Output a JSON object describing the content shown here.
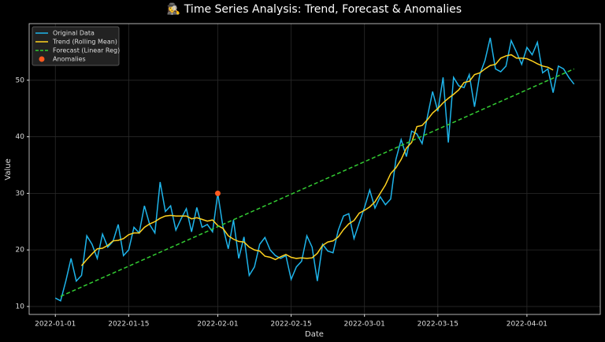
{
  "chart_data": {
    "type": "line",
    "title": "🕵‍♀ Time Series Analysis: Trend, Forecast & Anomalies",
    "x_label": "Date",
    "y_label": "Value",
    "x": [
      "2022-01-01",
      "2022-01-02",
      "2022-01-03",
      "2022-01-04",
      "2022-01-05",
      "2022-01-06",
      "2022-01-07",
      "2022-01-08",
      "2022-01-09",
      "2022-01-10",
      "2022-01-11",
      "2022-01-12",
      "2022-01-13",
      "2022-01-14",
      "2022-01-15",
      "2022-01-16",
      "2022-01-17",
      "2022-01-18",
      "2022-01-19",
      "2022-01-20",
      "2022-01-21",
      "2022-01-22",
      "2022-01-23",
      "2022-01-24",
      "2022-01-25",
      "2022-01-26",
      "2022-01-27",
      "2022-01-28",
      "2022-01-29",
      "2022-01-30",
      "2022-01-31",
      "2022-02-01",
      "2022-02-02",
      "2022-02-03",
      "2022-02-04",
      "2022-02-05",
      "2022-02-06",
      "2022-02-07",
      "2022-02-08",
      "2022-02-09",
      "2022-02-10",
      "2022-02-11",
      "2022-02-12",
      "2022-02-13",
      "2022-02-14",
      "2022-02-15",
      "2022-02-16",
      "2022-02-17",
      "2022-02-18",
      "2022-02-19",
      "2022-02-20",
      "2022-02-21",
      "2022-02-22",
      "2022-02-23",
      "2022-02-24",
      "2022-02-25",
      "2022-02-26",
      "2022-02-27",
      "2022-02-28",
      "2022-03-01",
      "2022-03-02",
      "2022-03-03",
      "2022-03-04",
      "2022-03-05",
      "2022-03-06",
      "2022-03-07",
      "2022-03-08",
      "2022-03-09",
      "2022-03-10",
      "2022-03-11",
      "2022-03-12",
      "2022-03-13",
      "2022-03-14",
      "2022-03-15",
      "2022-03-16",
      "2022-03-17",
      "2022-03-18",
      "2022-03-19",
      "2022-03-20",
      "2022-03-21",
      "2022-03-22",
      "2022-03-23",
      "2022-03-24",
      "2022-03-25",
      "2022-03-26",
      "2022-03-27",
      "2022-03-28",
      "2022-03-29",
      "2022-03-30",
      "2022-03-31",
      "2022-04-01",
      "2022-04-02",
      "2022-04-03",
      "2022-04-04",
      "2022-04-05",
      "2022-04-06",
      "2022-04-07",
      "2022-04-08",
      "2022-04-09",
      "2022-04-10"
    ],
    "series": [
      {
        "name": "Original Data",
        "type": "line",
        "color": "#1eb4ea",
        "values": [
          11.5,
          11,
          14.5,
          18.5,
          14.5,
          15.5,
          22.5,
          21,
          18.5,
          22.8,
          20.5,
          21.5,
          24.5,
          19,
          20,
          24,
          23,
          27.8,
          24.5,
          23,
          32,
          26.8,
          27.8,
          23.5,
          25.5,
          27.3,
          23.2,
          27.5,
          24,
          24.5,
          23.2,
          30,
          24,
          20.2,
          25.3,
          18.5,
          22.3,
          15.5,
          17,
          21,
          22.2,
          20,
          19,
          18.5,
          19,
          14.8,
          17,
          18,
          22.5,
          20.5,
          14.5,
          21,
          19.8,
          19.5,
          23.5,
          26,
          26.4,
          22,
          24.8,
          27.5,
          30.6,
          27.4,
          29.4,
          28,
          29,
          36,
          39.5,
          36.5,
          41,
          40.5,
          38.8,
          43.5,
          48,
          44.5,
          50.5,
          39,
          50.5,
          49,
          48.7,
          51,
          45.3,
          51,
          53.5,
          57.5,
          52,
          51.5,
          52.5,
          57,
          55,
          52.8,
          55.8,
          54.5,
          56.7,
          51.3,
          52,
          47.8,
          52.5,
          52,
          50.5,
          49.3
        ]
      },
      {
        "name": "Trend (Rolling Mean)",
        "type": "line",
        "color": "#ffd21f",
        "values": [
          null,
          null,
          null,
          null,
          null,
          17.2,
          18.3,
          19.3,
          20.2,
          20.3,
          20.8,
          21.6,
          21.7,
          22,
          22.7,
          23,
          23,
          24,
          24.6,
          25,
          25.6,
          26,
          26.1,
          26,
          26,
          26,
          25.5,
          25.7,
          25.4,
          25.1,
          25.3,
          24.3,
          23.8,
          22.5,
          21.9,
          21.5,
          21.4,
          20.5,
          20,
          19.8,
          18.9,
          18.7,
          18.3,
          18.8,
          19.2,
          18.7,
          18.5,
          18.6,
          18.5,
          18.6,
          19.4,
          20.8,
          21.4,
          21.6,
          22.3,
          23.6,
          24.6,
          25.2,
          26.5,
          27,
          27.6,
          28.5,
          30,
          31.5,
          33.5,
          34.5,
          36,
          38,
          39,
          41.8,
          42,
          43,
          44.2,
          45,
          46,
          46.8,
          47.5,
          48.3,
          49.6,
          49.8,
          51,
          51.3,
          52,
          52.6,
          52.8,
          53.9,
          54.3,
          54.5,
          53.9,
          53.9,
          53.8,
          53.4,
          52.9,
          52.5,
          52.3,
          51.8,
          null,
          null,
          null,
          null
        ]
      },
      {
        "name": "Forecast (Linear Reg)",
        "type": "line",
        "dashed": true,
        "color": "#33cc33",
        "x": [
          "2022-01-02",
          "2022-04-10"
        ],
        "values": [
          11.8,
          52
        ]
      },
      {
        "name": "Anomalies",
        "type": "scatter",
        "color": "#ff5a1f",
        "x": [
          "2022-02-01"
        ],
        "values": [
          30
        ]
      }
    ],
    "xlim": [
      "2021-12-27",
      "2022-04-15"
    ],
    "xticks": [
      "2022-01-01",
      "2022-01-15",
      "2022-02-01",
      "2022-02-15",
      "2022-03-01",
      "2022-03-15",
      "2022-04-01"
    ],
    "ylim": [
      8.6,
      60
    ],
    "yticks": [
      10,
      20,
      30,
      40,
      50
    ],
    "grid": true,
    "legend": "upper left"
  }
}
